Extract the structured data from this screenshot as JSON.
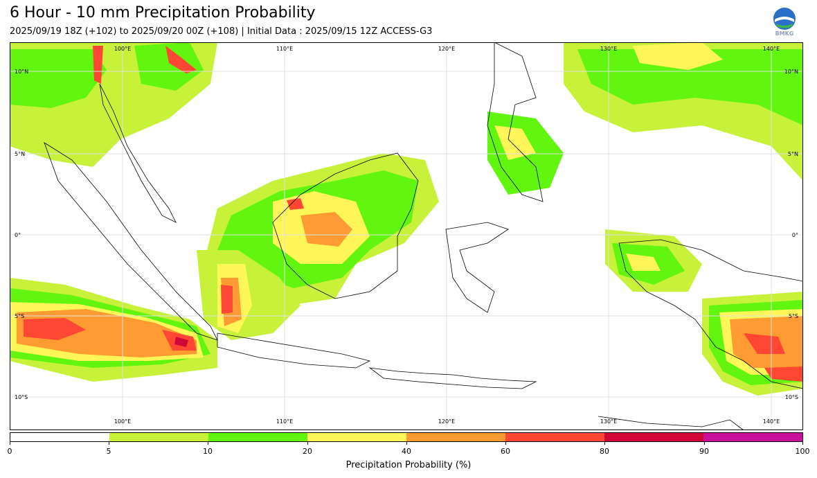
{
  "title": "6 Hour - 10 mm Precipitation Probability",
  "subtitle": "2025/09/19 18Z (+102) to 2025/09/20 00Z (+108) | Initial Data : 2025/09/15 12Z ACCESS-G3",
  "logo": {
    "icon": "bmkg-logo",
    "text": "BMKG"
  },
  "map": {
    "top_lon_labels": [
      "100°E",
      "110°E",
      "120°E",
      "130°E",
      "140°E"
    ],
    "bottom_lon_labels": [
      "100°E",
      "110°E",
      "120°E",
      "130°E",
      "140°E"
    ],
    "left_lat_labels": [
      "10°N",
      "5°N",
      "0°",
      "5°S",
      "10°S"
    ],
    "right_lat_labels": [
      "10°N",
      "5°N",
      "0°",
      "5°S",
      "10°S"
    ]
  },
  "colorbar": {
    "label": "Precipitation Probability (%)",
    "ticks": [
      "0",
      "5",
      "10",
      "20",
      "40",
      "60",
      "80",
      "90",
      "100"
    ],
    "colors": [
      "#ffffff",
      "#c8f23a",
      "#61f50f",
      "#fff65a",
      "#ff9b33",
      "#ff4733",
      "#d10737",
      "#c8109a"
    ]
  }
}
